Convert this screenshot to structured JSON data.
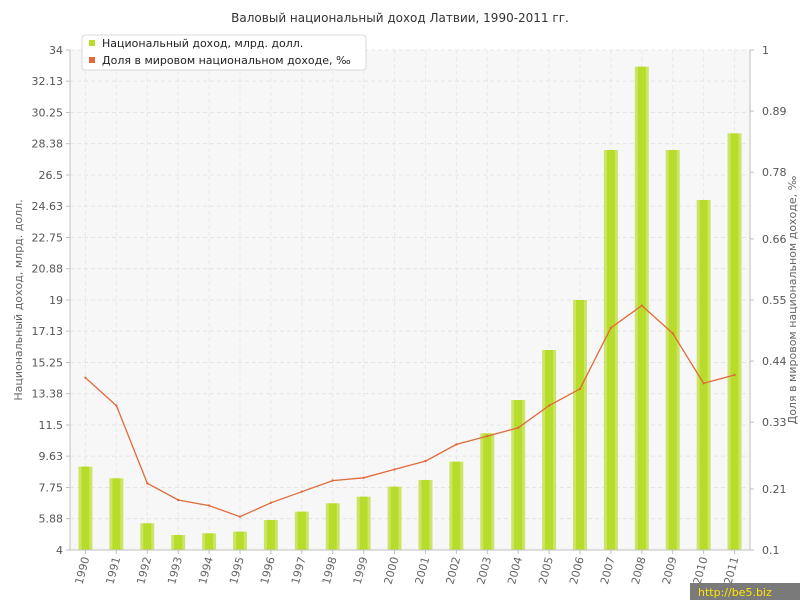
{
  "chart_data": {
    "type": "bar",
    "title": "Валовый национальный доход Латвии, 1990-2011 гг.",
    "ylabel_left": "Национальный доход, млрд. долл.",
    "ylabel_right": "Доля в мировом национальном доходе, ‰",
    "categories": [
      "1990",
      "1991",
      "1992",
      "1993",
      "1994",
      "1995",
      "1996",
      "1997",
      "1998",
      "1999",
      "2000",
      "2001",
      "2002",
      "2003",
      "2004",
      "2005",
      "2006",
      "2007",
      "2008",
      "2009",
      "2010",
      "2011"
    ],
    "left_ticks": [
      "4",
      "5.88",
      "7.75",
      "9.63",
      "11.5",
      "13.38",
      "15.25",
      "17.13",
      "19",
      "20.88",
      "22.75",
      "24.63",
      "26.5",
      "28.38",
      "30.25",
      "32.13",
      "34"
    ],
    "right_ticks": [
      "0.1",
      "0.21",
      "0.33",
      "0.44",
      "0.55",
      "0.66",
      "0.78",
      "0.89",
      "1"
    ],
    "ylim_left": [
      4,
      34
    ],
    "ylim_right": [
      0.1,
      1
    ],
    "grid": true,
    "legend_position": "top-left",
    "series": [
      {
        "name": "Национальный доход, млрд. долл.",
        "type": "bar",
        "axis": "left",
        "color": "#b8dc2a",
        "values": [
          9.0,
          8.3,
          5.6,
          4.9,
          5.0,
          5.1,
          5.8,
          6.3,
          6.8,
          7.2,
          7.8,
          8.2,
          9.3,
          11.0,
          13.0,
          16.0,
          19.0,
          28.0,
          33.0,
          28.0,
          25.0,
          29.0
        ]
      },
      {
        "name": "Доля в мировом национальном доходе, ‰",
        "type": "line",
        "axis": "right",
        "color": "#e06a3a",
        "values": [
          0.41,
          0.36,
          0.22,
          0.19,
          0.18,
          0.16,
          0.185,
          0.205,
          0.225,
          0.23,
          0.245,
          0.26,
          0.29,
          0.305,
          0.32,
          0.36,
          0.39,
          0.5,
          0.54,
          0.49,
          0.4,
          0.415
        ]
      }
    ]
  },
  "watermark": "http://be5.biz"
}
